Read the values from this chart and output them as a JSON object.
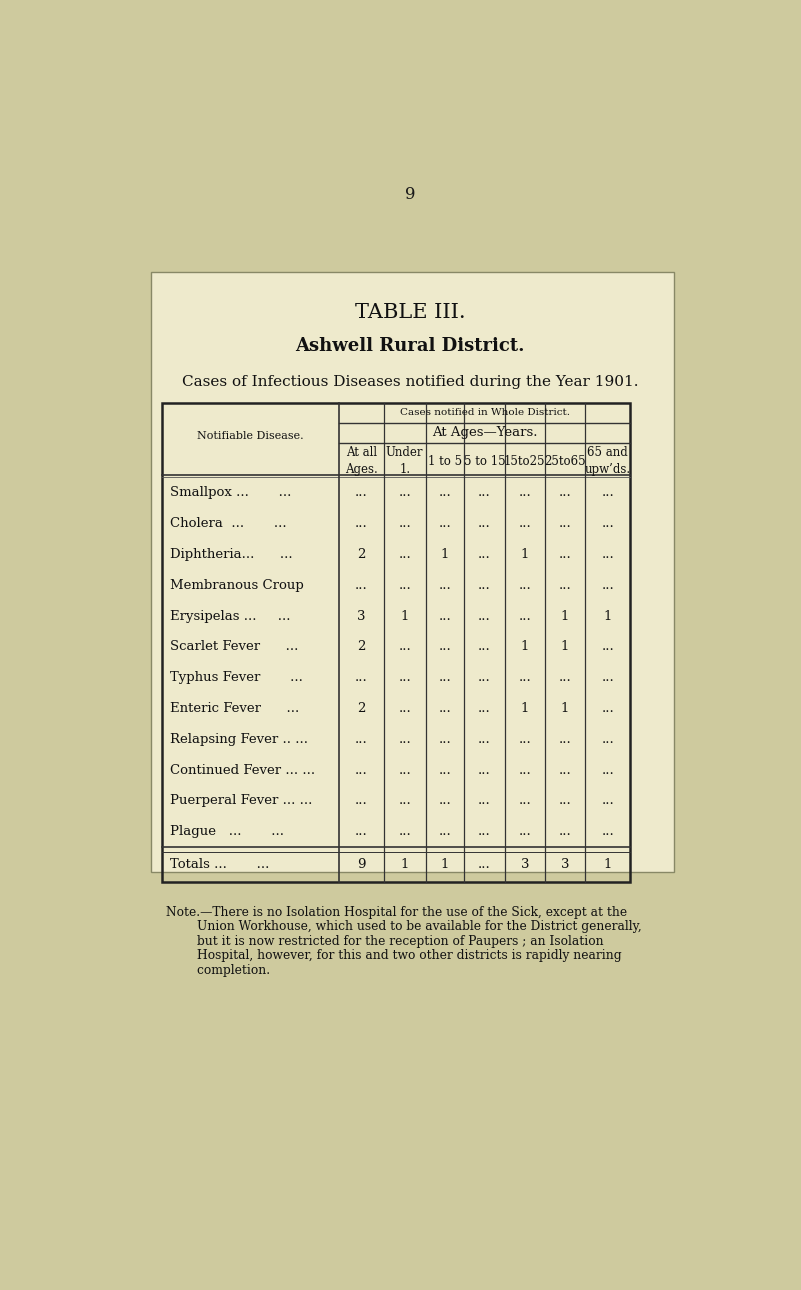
{
  "page_number": "9",
  "title1": "TABLE III.",
  "title2": "Ashwell Rural District.",
  "title3": "Cases of Infectious Diseases notified during the Year 1901.",
  "page_bg_color": "#ceca9e",
  "card_bg_color": "#ecea c8",
  "header_row1": "Cases notified in Whole District.",
  "header_row2": "At Ages—Years.",
  "col_headers": [
    "At all\nAges.",
    "Under\n1.",
    "1 to 5",
    "5 to 15",
    "15to25",
    "25to65",
    "65 and\nupw’ds."
  ],
  "row_label_header": "Notifiable Disease.",
  "diseases": [
    "Smallpox ...          ...",
    "Cholera     ...       ...",
    "Diphtheria...         ...",
    "Membranous Croup",
    "Erysipelas ...        ...",
    "Scarlet Fever         ...",
    "Typhus Fever          ...",
    "Enteric Fever         ...",
    "Relapsing Fever ..    ...",
    "Continued Fever ...   ...",
    "Puerperal Fever ...   ...",
    "Plague      ...       ..."
  ],
  "table_data": [
    [
      "...",
      "...",
      "...",
      "...",
      "...",
      "...",
      "..."
    ],
    [
      "...",
      "...",
      "...",
      "...",
      "...",
      "...",
      "..."
    ],
    [
      "2",
      "...",
      "1",
      "...",
      "1",
      "...",
      "..."
    ],
    [
      "...",
      "...",
      "...",
      "...",
      "...",
      "...",
      "..."
    ],
    [
      "3",
      "1",
      "...",
      "...",
      "...",
      "1",
      "1"
    ],
    [
      "2",
      "...",
      "...",
      "...",
      "1",
      "1",
      "..."
    ],
    [
      "...",
      "...",
      "...",
      "...",
      "...",
      "...",
      "..."
    ],
    [
      "2",
      "...",
      "...",
      "...",
      "1",
      "1",
      "..."
    ],
    [
      "...",
      "...",
      "...",
      "...",
      "...",
      "...",
      "..."
    ],
    [
      "...",
      "...",
      "...",
      "...",
      "...",
      "...",
      "..."
    ],
    [
      "...",
      "...",
      "...",
      "...",
      "...",
      "...",
      "..."
    ],
    [
      "...",
      "...",
      "...",
      "...",
      "...",
      "...",
      "..."
    ]
  ],
  "totals_data": [
    "9",
    "1",
    "1",
    "...",
    "3",
    "3",
    "1"
  ],
  "note_lines": [
    "Note.—There is no Isolation Hospital for the use of the Sick, except at the",
    "        Union Workhouse, which used to be available for the District generally,",
    "        but it is now restricted for the reception of Paupers ; an Isolation",
    "        Hospital, however, for this and two other districts is rapidly nearing",
    "        completion."
  ]
}
